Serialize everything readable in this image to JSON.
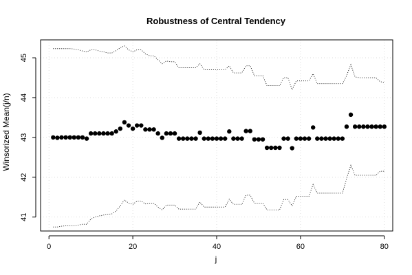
{
  "chart_data": {
    "type": "scatter",
    "title": "Robustness of Central Tendency",
    "xlabel": "j",
    "ylabel": "Winsorized Mean(j/n)",
    "xlim": [
      -2,
      82
    ],
    "ylim": [
      40.65,
      45.45
    ],
    "xticks": [
      0,
      20,
      40,
      60,
      80
    ],
    "yticks": [
      41,
      42,
      43,
      44,
      45
    ],
    "grid": true,
    "x": [
      1,
      2,
      3,
      4,
      5,
      6,
      7,
      8,
      9,
      10,
      11,
      12,
      13,
      14,
      15,
      16,
      17,
      18,
      19,
      20,
      21,
      22,
      23,
      24,
      25,
      26,
      27,
      28,
      29,
      30,
      31,
      32,
      33,
      34,
      35,
      36,
      37,
      38,
      39,
      40,
      41,
      42,
      43,
      44,
      45,
      46,
      47,
      48,
      49,
      50,
      51,
      52,
      53,
      54,
      55,
      56,
      57,
      58,
      59,
      60,
      61,
      62,
      63,
      64,
      65,
      66,
      67,
      68,
      69,
      70,
      71,
      72,
      73,
      74,
      75,
      76,
      77,
      78,
      79,
      80
    ],
    "series": [
      {
        "style": "points",
        "color": "#000000",
        "values": [
          43.0,
          42.99,
          43.0,
          43.0,
          43.0,
          43.0,
          43.0,
          43.0,
          42.97,
          43.1,
          43.1,
          43.1,
          43.1,
          43.1,
          43.1,
          43.15,
          43.22,
          43.38,
          43.3,
          43.22,
          43.3,
          43.3,
          43.2,
          43.2,
          43.2,
          43.1,
          42.99,
          43.1,
          43.1,
          43.1,
          42.97,
          42.97,
          42.97,
          42.97,
          42.97,
          43.12,
          42.97,
          42.97,
          42.97,
          42.97,
          42.97,
          42.97,
          43.15,
          42.97,
          42.97,
          42.97,
          43.16,
          43.16,
          42.95,
          42.95,
          42.95,
          42.74,
          42.74,
          42.74,
          42.74,
          42.97,
          42.97,
          42.73,
          42.97,
          42.97,
          42.97,
          42.97,
          43.25,
          42.97,
          42.97,
          42.97,
          42.97,
          42.97,
          42.97,
          42.97,
          43.27,
          43.57,
          43.27,
          43.27,
          43.27,
          43.27,
          43.27,
          43.27,
          43.27,
          43.27
        ]
      },
      {
        "style": "dotted",
        "color": "#000000",
        "values": [
          45.23,
          45.23,
          45.23,
          45.23,
          45.23,
          45.22,
          45.2,
          45.17,
          45.15,
          45.2,
          45.2,
          45.17,
          45.15,
          45.12,
          45.12,
          45.18,
          45.25,
          45.3,
          45.2,
          45.15,
          45.2,
          45.2,
          45.1,
          45.05,
          45.05,
          44.95,
          44.85,
          44.92,
          44.9,
          44.9,
          44.75,
          44.75,
          44.75,
          44.75,
          44.75,
          44.85,
          44.7,
          44.7,
          44.7,
          44.7,
          44.7,
          44.7,
          44.8,
          44.62,
          44.62,
          44.62,
          44.8,
          44.8,
          44.55,
          44.55,
          44.55,
          44.3,
          44.3,
          44.3,
          44.3,
          44.5,
          44.5,
          44.2,
          44.42,
          44.42,
          44.42,
          44.42,
          44.6,
          44.35,
          44.35,
          44.35,
          44.35,
          44.35,
          44.35,
          44.35,
          44.55,
          44.83,
          44.52,
          44.5,
          44.5,
          44.5,
          44.5,
          44.5,
          44.4,
          44.38
        ]
      },
      {
        "style": "dotted",
        "color": "#000000",
        "values": [
          40.75,
          40.75,
          40.77,
          40.78,
          40.78,
          40.78,
          40.8,
          40.82,
          40.82,
          40.95,
          41.0,
          41.03,
          41.05,
          41.07,
          41.08,
          41.15,
          41.28,
          41.43,
          41.35,
          41.32,
          41.4,
          41.4,
          41.33,
          41.35,
          41.35,
          41.25,
          41.18,
          41.3,
          41.3,
          41.3,
          41.2,
          41.2,
          41.2,
          41.2,
          41.2,
          41.38,
          41.25,
          41.25,
          41.25,
          41.25,
          41.25,
          41.25,
          41.45,
          41.32,
          41.32,
          41.32,
          41.55,
          41.55,
          41.35,
          41.35,
          41.35,
          41.18,
          41.18,
          41.18,
          41.18,
          41.44,
          41.44,
          41.28,
          41.52,
          41.52,
          41.52,
          41.52,
          41.82,
          41.6,
          41.6,
          41.6,
          41.6,
          41.6,
          41.6,
          41.6,
          41.97,
          42.3,
          42.05,
          42.05,
          42.05,
          42.05,
          42.05,
          42.05,
          42.15,
          42.15
        ]
      }
    ]
  }
}
